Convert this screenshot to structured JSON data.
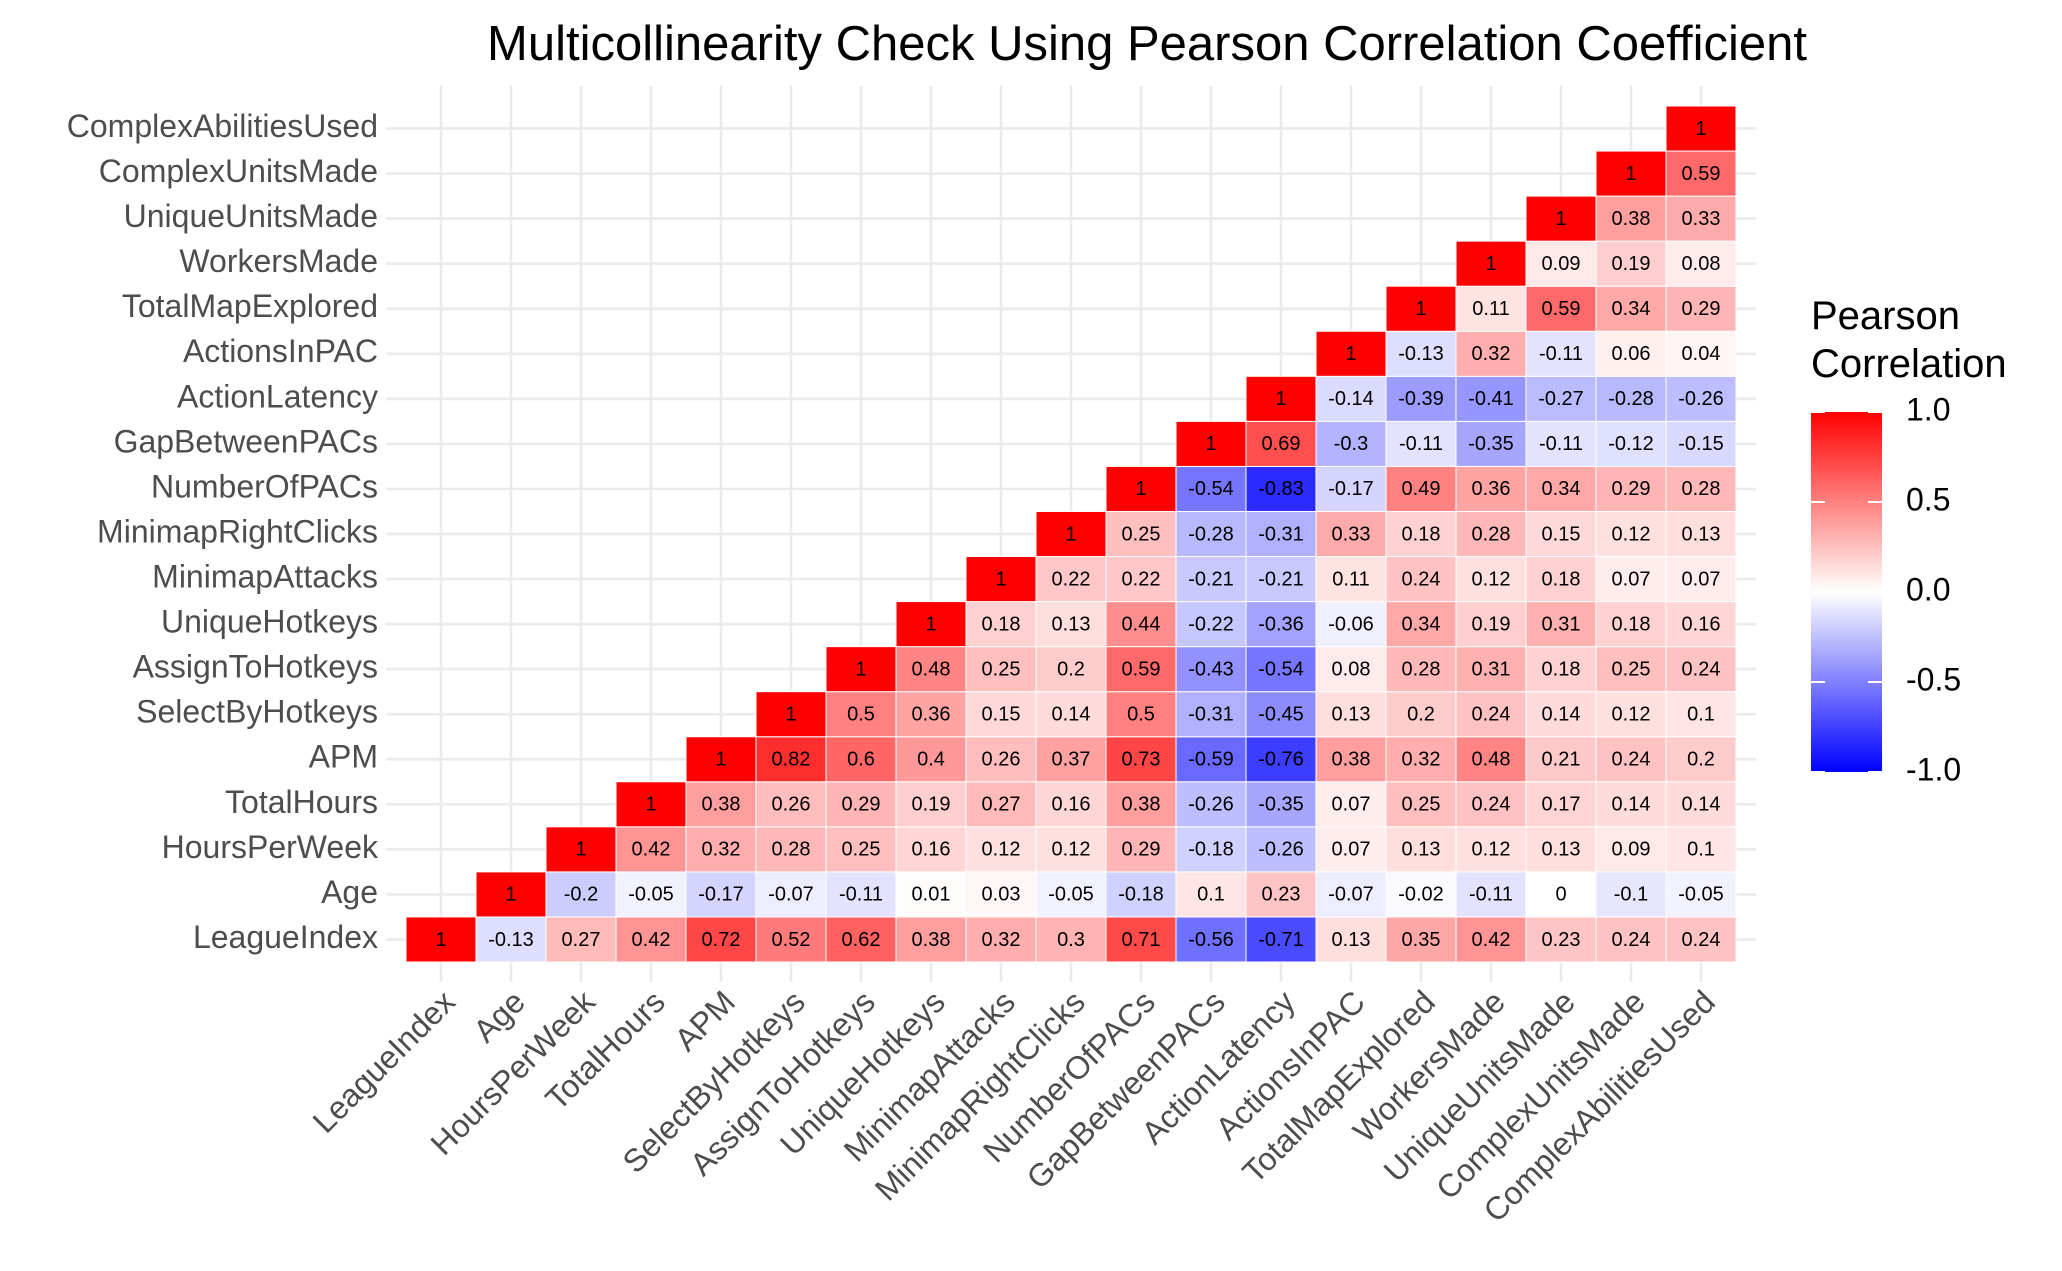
{
  "chart_data": {
    "type": "heatmap",
    "title": "Multicollinearity Check Using Pearson Correlation Coefficient",
    "x": [
      "LeagueIndex",
      "Age",
      "HoursPerWeek",
      "TotalHours",
      "APM",
      "SelectByHotkeys",
      "AssignToHotkeys",
      "UniqueHotkeys",
      "MinimapAttacks",
      "MinimapRightClicks",
      "NumberOfPACs",
      "GapBetweenPACs",
      "ActionLatency",
      "ActionsInPAC",
      "TotalMapExplored",
      "WorkersMade",
      "UniqueUnitsMade",
      "ComplexUnitsMade",
      "ComplexAbilitiesUsed"
    ],
    "y": [
      "LeagueIndex",
      "Age",
      "HoursPerWeek",
      "TotalHours",
      "APM",
      "SelectByHotkeys",
      "AssignToHotkeys",
      "UniqueHotkeys",
      "MinimapAttacks",
      "MinimapRightClicks",
      "NumberOfPACs",
      "GapBetweenPACs",
      "ActionLatency",
      "ActionsInPAC",
      "TotalMapExplored",
      "WorkersMade",
      "UniqueUnitsMade",
      "ComplexUnitsMade",
      "ComplexAbilitiesUsed"
    ],
    "values": [
      [
        1,
        -0.13,
        0.27,
        0.42,
        0.72,
        0.52,
        0.62,
        0.38,
        0.32,
        0.3,
        0.71,
        -0.56,
        -0.71,
        0.13,
        0.35,
        0.42,
        0.23,
        0.24,
        0.24
      ],
      [
        null,
        1,
        -0.2,
        -0.05,
        -0.17,
        -0.07,
        -0.11,
        0.01,
        0.03,
        -0.05,
        -0.18,
        0.1,
        0.23,
        -0.07,
        -0.02,
        -0.11,
        0,
        -0.1,
        -0.05
      ],
      [
        null,
        null,
        1,
        0.42,
        0.32,
        0.28,
        0.25,
        0.16,
        0.12,
        0.12,
        0.29,
        -0.18,
        -0.26,
        0.07,
        0.13,
        0.12,
        0.13,
        0.09,
        0.1
      ],
      [
        null,
        null,
        null,
        1,
        0.38,
        0.26,
        0.29,
        0.19,
        0.27,
        0.16,
        0.38,
        -0.26,
        -0.35,
        0.07,
        0.25,
        0.24,
        0.17,
        0.14,
        0.14
      ],
      [
        null,
        null,
        null,
        null,
        1,
        0.82,
        0.6,
        0.4,
        0.26,
        0.37,
        0.73,
        -0.59,
        -0.76,
        0.38,
        0.32,
        0.48,
        0.21,
        0.24,
        0.2
      ],
      [
        null,
        null,
        null,
        null,
        null,
        1,
        0.5,
        0.36,
        0.15,
        0.14,
        0.5,
        -0.31,
        -0.45,
        0.13,
        0.2,
        0.24,
        0.14,
        0.12,
        0.1
      ],
      [
        null,
        null,
        null,
        null,
        null,
        null,
        1,
        0.48,
        0.25,
        0.2,
        0.59,
        -0.43,
        -0.54,
        0.08,
        0.28,
        0.31,
        0.18,
        0.25,
        0.24
      ],
      [
        null,
        null,
        null,
        null,
        null,
        null,
        null,
        1,
        0.18,
        0.13,
        0.44,
        -0.22,
        -0.36,
        -0.06,
        0.34,
        0.19,
        0.31,
        0.18,
        0.16
      ],
      [
        null,
        null,
        null,
        null,
        null,
        null,
        null,
        null,
        1,
        0.22,
        0.22,
        -0.21,
        -0.21,
        0.11,
        0.24,
        0.12,
        0.18,
        0.07,
        0.07
      ],
      [
        null,
        null,
        null,
        null,
        null,
        null,
        null,
        null,
        null,
        1,
        0.25,
        -0.28,
        -0.31,
        0.33,
        0.18,
        0.28,
        0.15,
        0.12,
        0.13
      ],
      [
        null,
        null,
        null,
        null,
        null,
        null,
        null,
        null,
        null,
        null,
        1,
        -0.54,
        -0.83,
        -0.17,
        0.49,
        0.36,
        0.34,
        0.29,
        0.28
      ],
      [
        null,
        null,
        null,
        null,
        null,
        null,
        null,
        null,
        null,
        null,
        null,
        1,
        0.69,
        -0.3,
        -0.11,
        -0.35,
        -0.11,
        -0.12,
        -0.15
      ],
      [
        null,
        null,
        null,
        null,
        null,
        null,
        null,
        null,
        null,
        null,
        null,
        null,
        1,
        -0.14,
        -0.39,
        -0.41,
        -0.27,
        -0.28,
        -0.26
      ],
      [
        null,
        null,
        null,
        null,
        null,
        null,
        null,
        null,
        null,
        null,
        null,
        null,
        null,
        1,
        -0.13,
        0.32,
        -0.11,
        0.06,
        0.04
      ],
      [
        null,
        null,
        null,
        null,
        null,
        null,
        null,
        null,
        null,
        null,
        null,
        null,
        null,
        null,
        1,
        0.11,
        0.59,
        0.34,
        0.29
      ],
      [
        null,
        null,
        null,
        null,
        null,
        null,
        null,
        null,
        null,
        null,
        null,
        null,
        null,
        null,
        null,
        1,
        0.09,
        0.19,
        0.08
      ],
      [
        null,
        null,
        null,
        null,
        null,
        null,
        null,
        null,
        null,
        null,
        null,
        null,
        null,
        null,
        null,
        null,
        1,
        0.38,
        0.33
      ],
      [
        null,
        null,
        null,
        null,
        null,
        null,
        null,
        null,
        null,
        null,
        null,
        null,
        null,
        null,
        null,
        null,
        null,
        1,
        0.59
      ],
      [
        null,
        null,
        null,
        null,
        null,
        null,
        null,
        null,
        null,
        null,
        null,
        null,
        null,
        null,
        null,
        null,
        null,
        null,
        1
      ]
    ],
    "legend_title": "Pearson Correlation",
    "color_low": "#0000FF",
    "color_mid": "#FFFFFF",
    "color_high": "#FF0000",
    "clim": [
      -1,
      1
    ],
    "cticks": [
      {
        "value": -1,
        "label": "-1.0"
      },
      {
        "value": -0.5,
        "label": "-0.5"
      },
      {
        "value": 0,
        "label": "0.0"
      },
      {
        "value": 0.5,
        "label": "0.5"
      },
      {
        "value": 1,
        "label": "1.0"
      }
    ],
    "grid": true
  }
}
